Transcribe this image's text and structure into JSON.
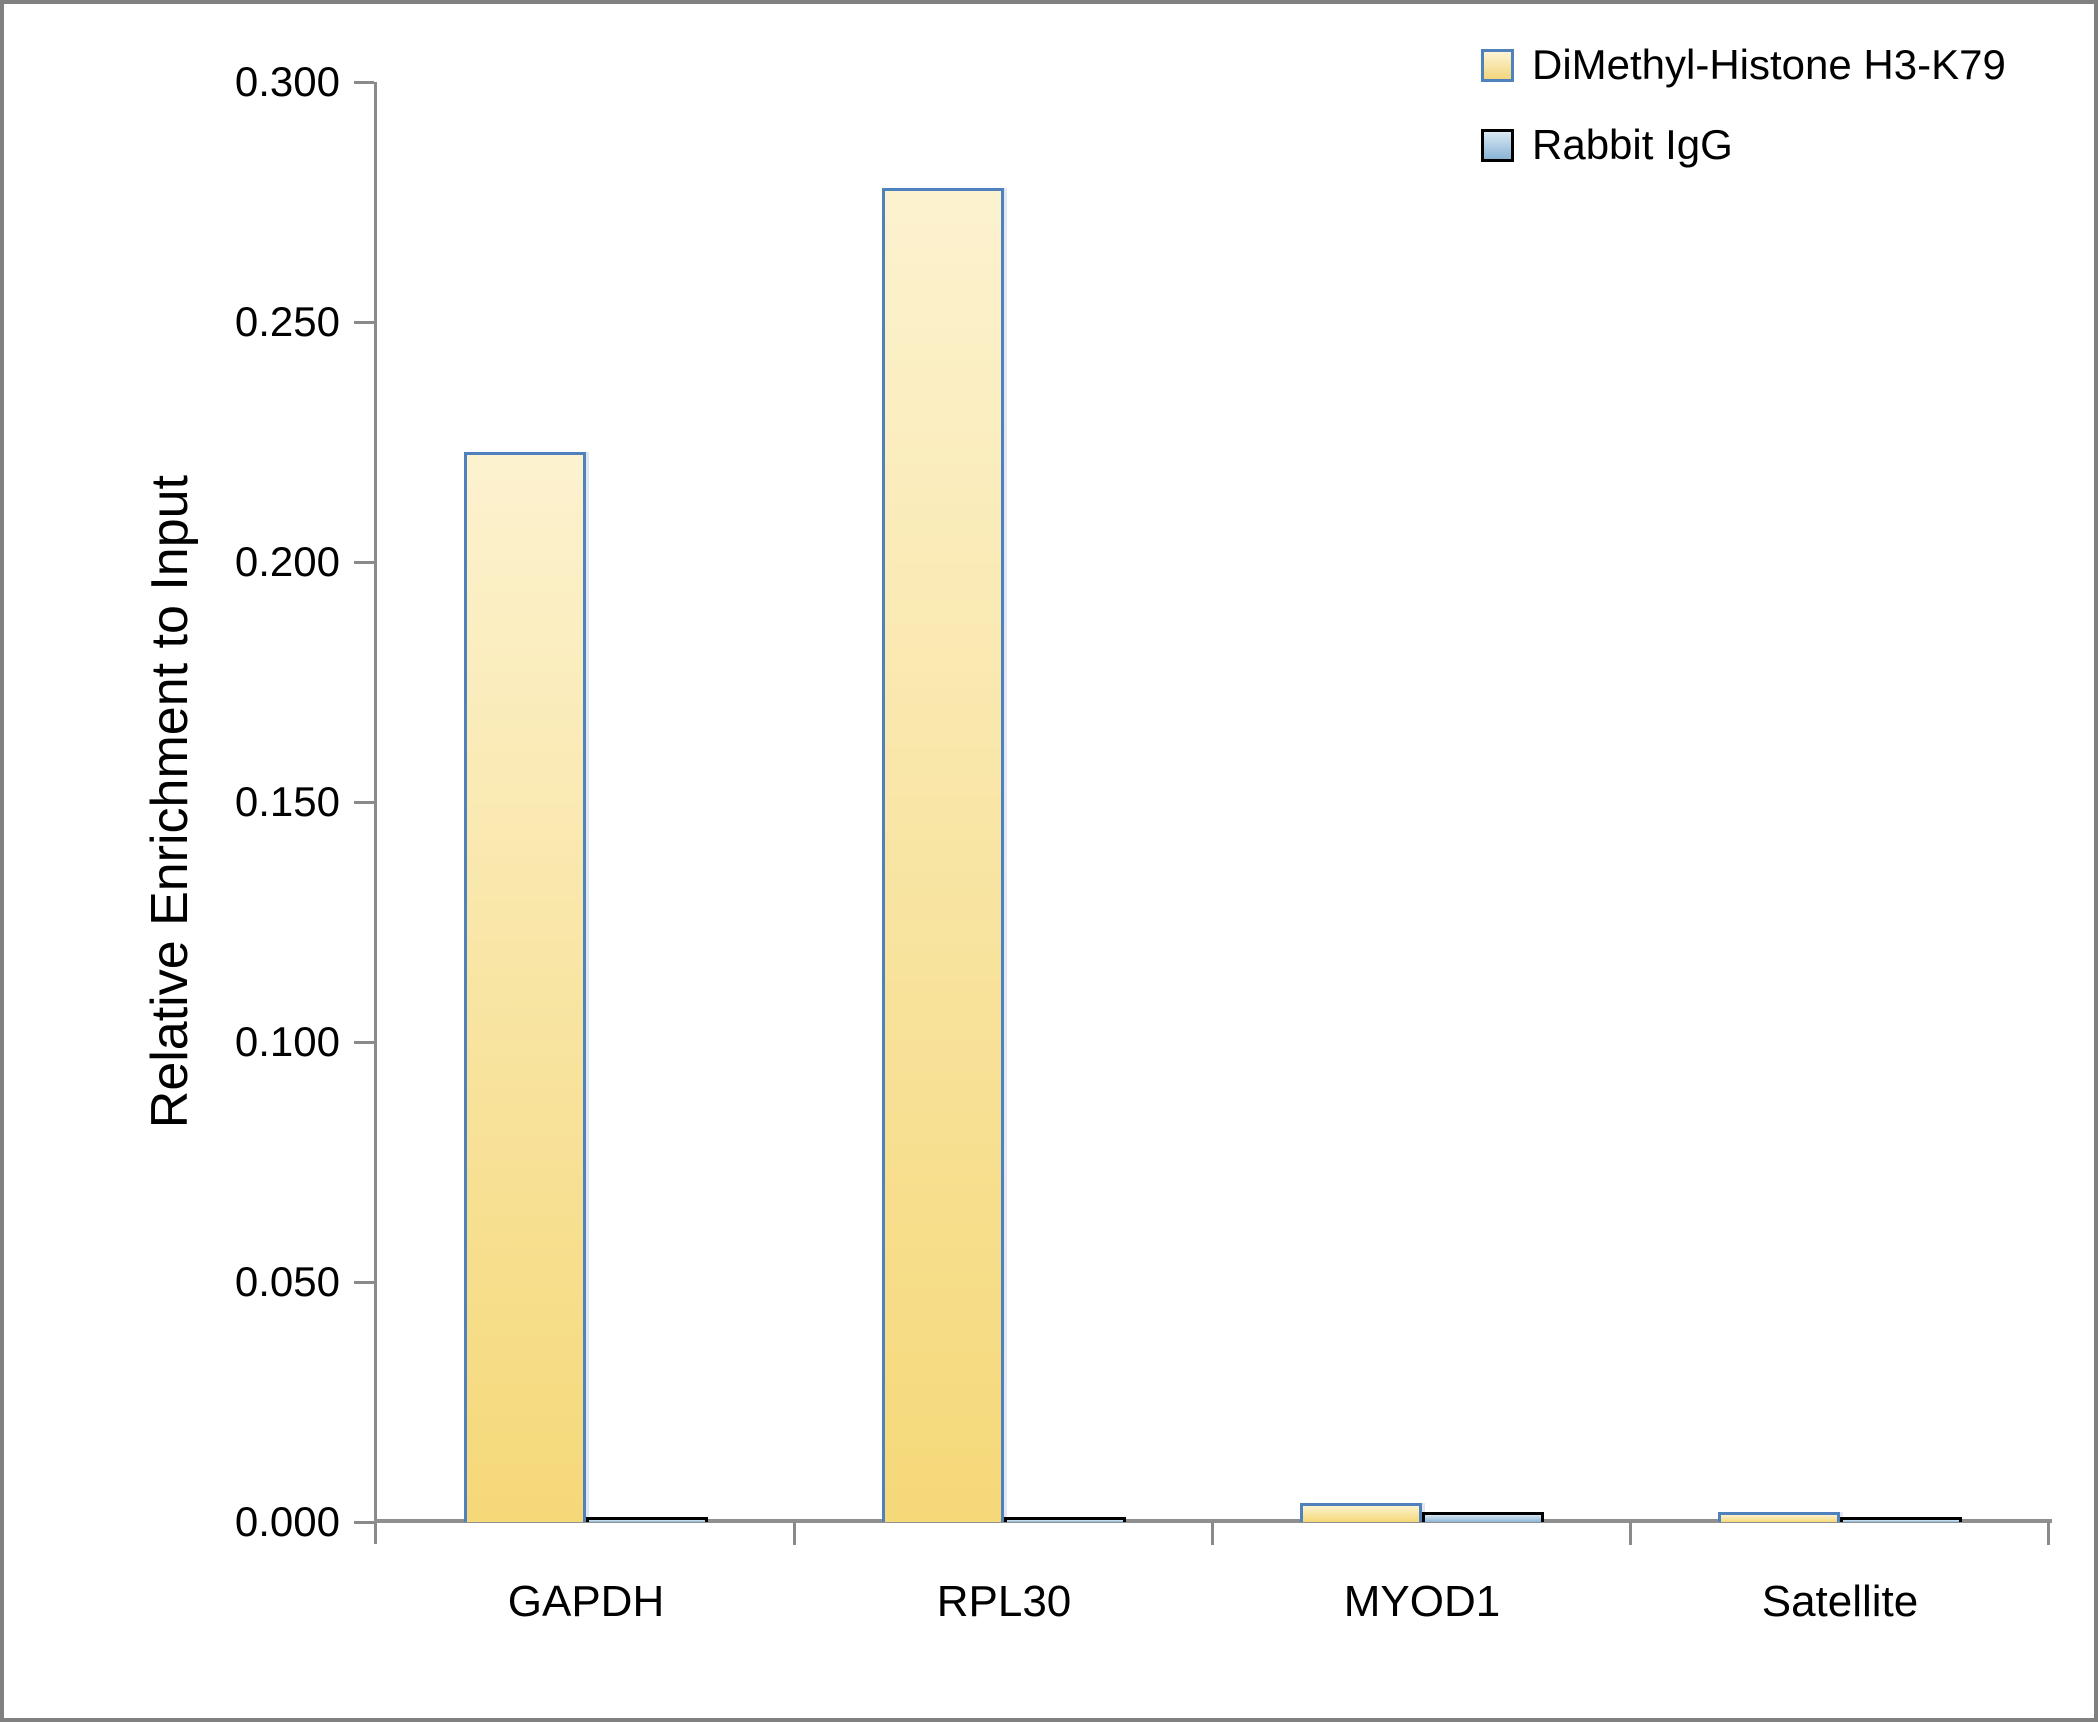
{
  "frame": {
    "border_color": "#808080",
    "background_color": "#FFFFFF"
  },
  "chart_data": {
    "type": "bar",
    "title": "",
    "xlabel": "",
    "ylabel": "Relative Enrichment to Input",
    "categories": [
      "GAPDH",
      "RPL30",
      "MYOD1",
      "Satellite"
    ],
    "series": [
      {
        "name": "DiMethyl-Histone H3-K79",
        "values": [
          0.223,
          0.278,
          0.004,
          0.002
        ],
        "fill_top": "#FCF2CF",
        "fill_bottom": "#F5D878",
        "border_color": "#4F81BD"
      },
      {
        "name": "Rabbit IgG",
        "values": [
          0.001,
          0.001,
          0.002,
          0.001
        ],
        "fill_top": "#D6E6F2",
        "fill_bottom": "#8CB6D8",
        "border_color": "#000000"
      }
    ],
    "ylim": [
      0,
      0.3
    ],
    "ytick_interval": 0.05,
    "ytick_labels": [
      "0.300",
      "0.250",
      "0.200",
      "0.150",
      "0.100",
      "0.050",
      "0.000"
    ],
    "grid": false,
    "legend_position": "top-right",
    "axis_color": "#8A8A8A"
  }
}
